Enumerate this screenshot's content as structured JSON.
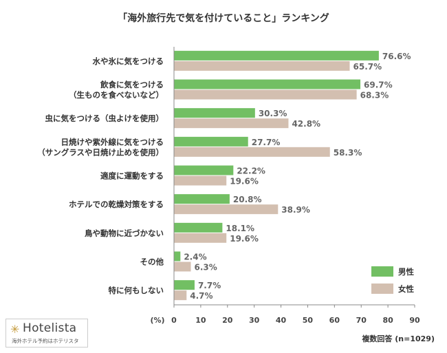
{
  "chart_data": {
    "type": "bar",
    "orientation": "horizontal",
    "title": "「海外旅行先で気を付けていること」ランキング",
    "categories": [
      [
        "水や氷に気をつける"
      ],
      [
        "飲食に気をつける",
        "（生ものを食べないなど）"
      ],
      [
        "虫に気をつける（虫よけを使用）"
      ],
      [
        "日焼けや紫外線に気をつける",
        "（サングラスや日焼け止めを使用）"
      ],
      [
        "適度に運動をする"
      ],
      [
        "ホテルでの乾燥対策をする"
      ],
      [
        "鳥や動物に近づかない"
      ],
      [
        "その他"
      ],
      [
        "特に何もしない"
      ]
    ],
    "series": [
      {
        "name": "男性",
        "color": "#72bf63",
        "values": [
          76.6,
          69.7,
          30.3,
          27.7,
          22.2,
          20.8,
          18.1,
          2.4,
          7.7
        ],
        "labels": [
          "76.6%",
          "69.7%",
          "30.3%",
          "27.7%",
          "22.2%",
          "20.8%",
          "18.1%",
          "2.4%",
          "7.7%"
        ]
      },
      {
        "name": "女性",
        "color": "#d3bfb0",
        "values": [
          65.7,
          68.3,
          42.8,
          58.3,
          19.6,
          38.9,
          19.6,
          6.3,
          4.7
        ],
        "labels": [
          "65.7%",
          "68.3%",
          "42.8%",
          "58.3%",
          "19.6%",
          "38.9%",
          "19.6%",
          "6.3%",
          "4.7%"
        ]
      }
    ],
    "xlim": [
      0,
      90
    ],
    "xticks": [
      0,
      10,
      20,
      30,
      40,
      50,
      60,
      70,
      80,
      90
    ],
    "xticklabels": [
      "0",
      "10",
      "20",
      "30",
      "40",
      "50",
      "60",
      "70",
      "80",
      "90"
    ],
    "xlabel": "(%)",
    "legend_position": "bottom-right",
    "grid": false,
    "note": "複数回答 (n=1029)"
  },
  "logo": {
    "star": "✳",
    "name": "Hotelista",
    "tagline": "海外ホテル予約はホテリスタ"
  }
}
